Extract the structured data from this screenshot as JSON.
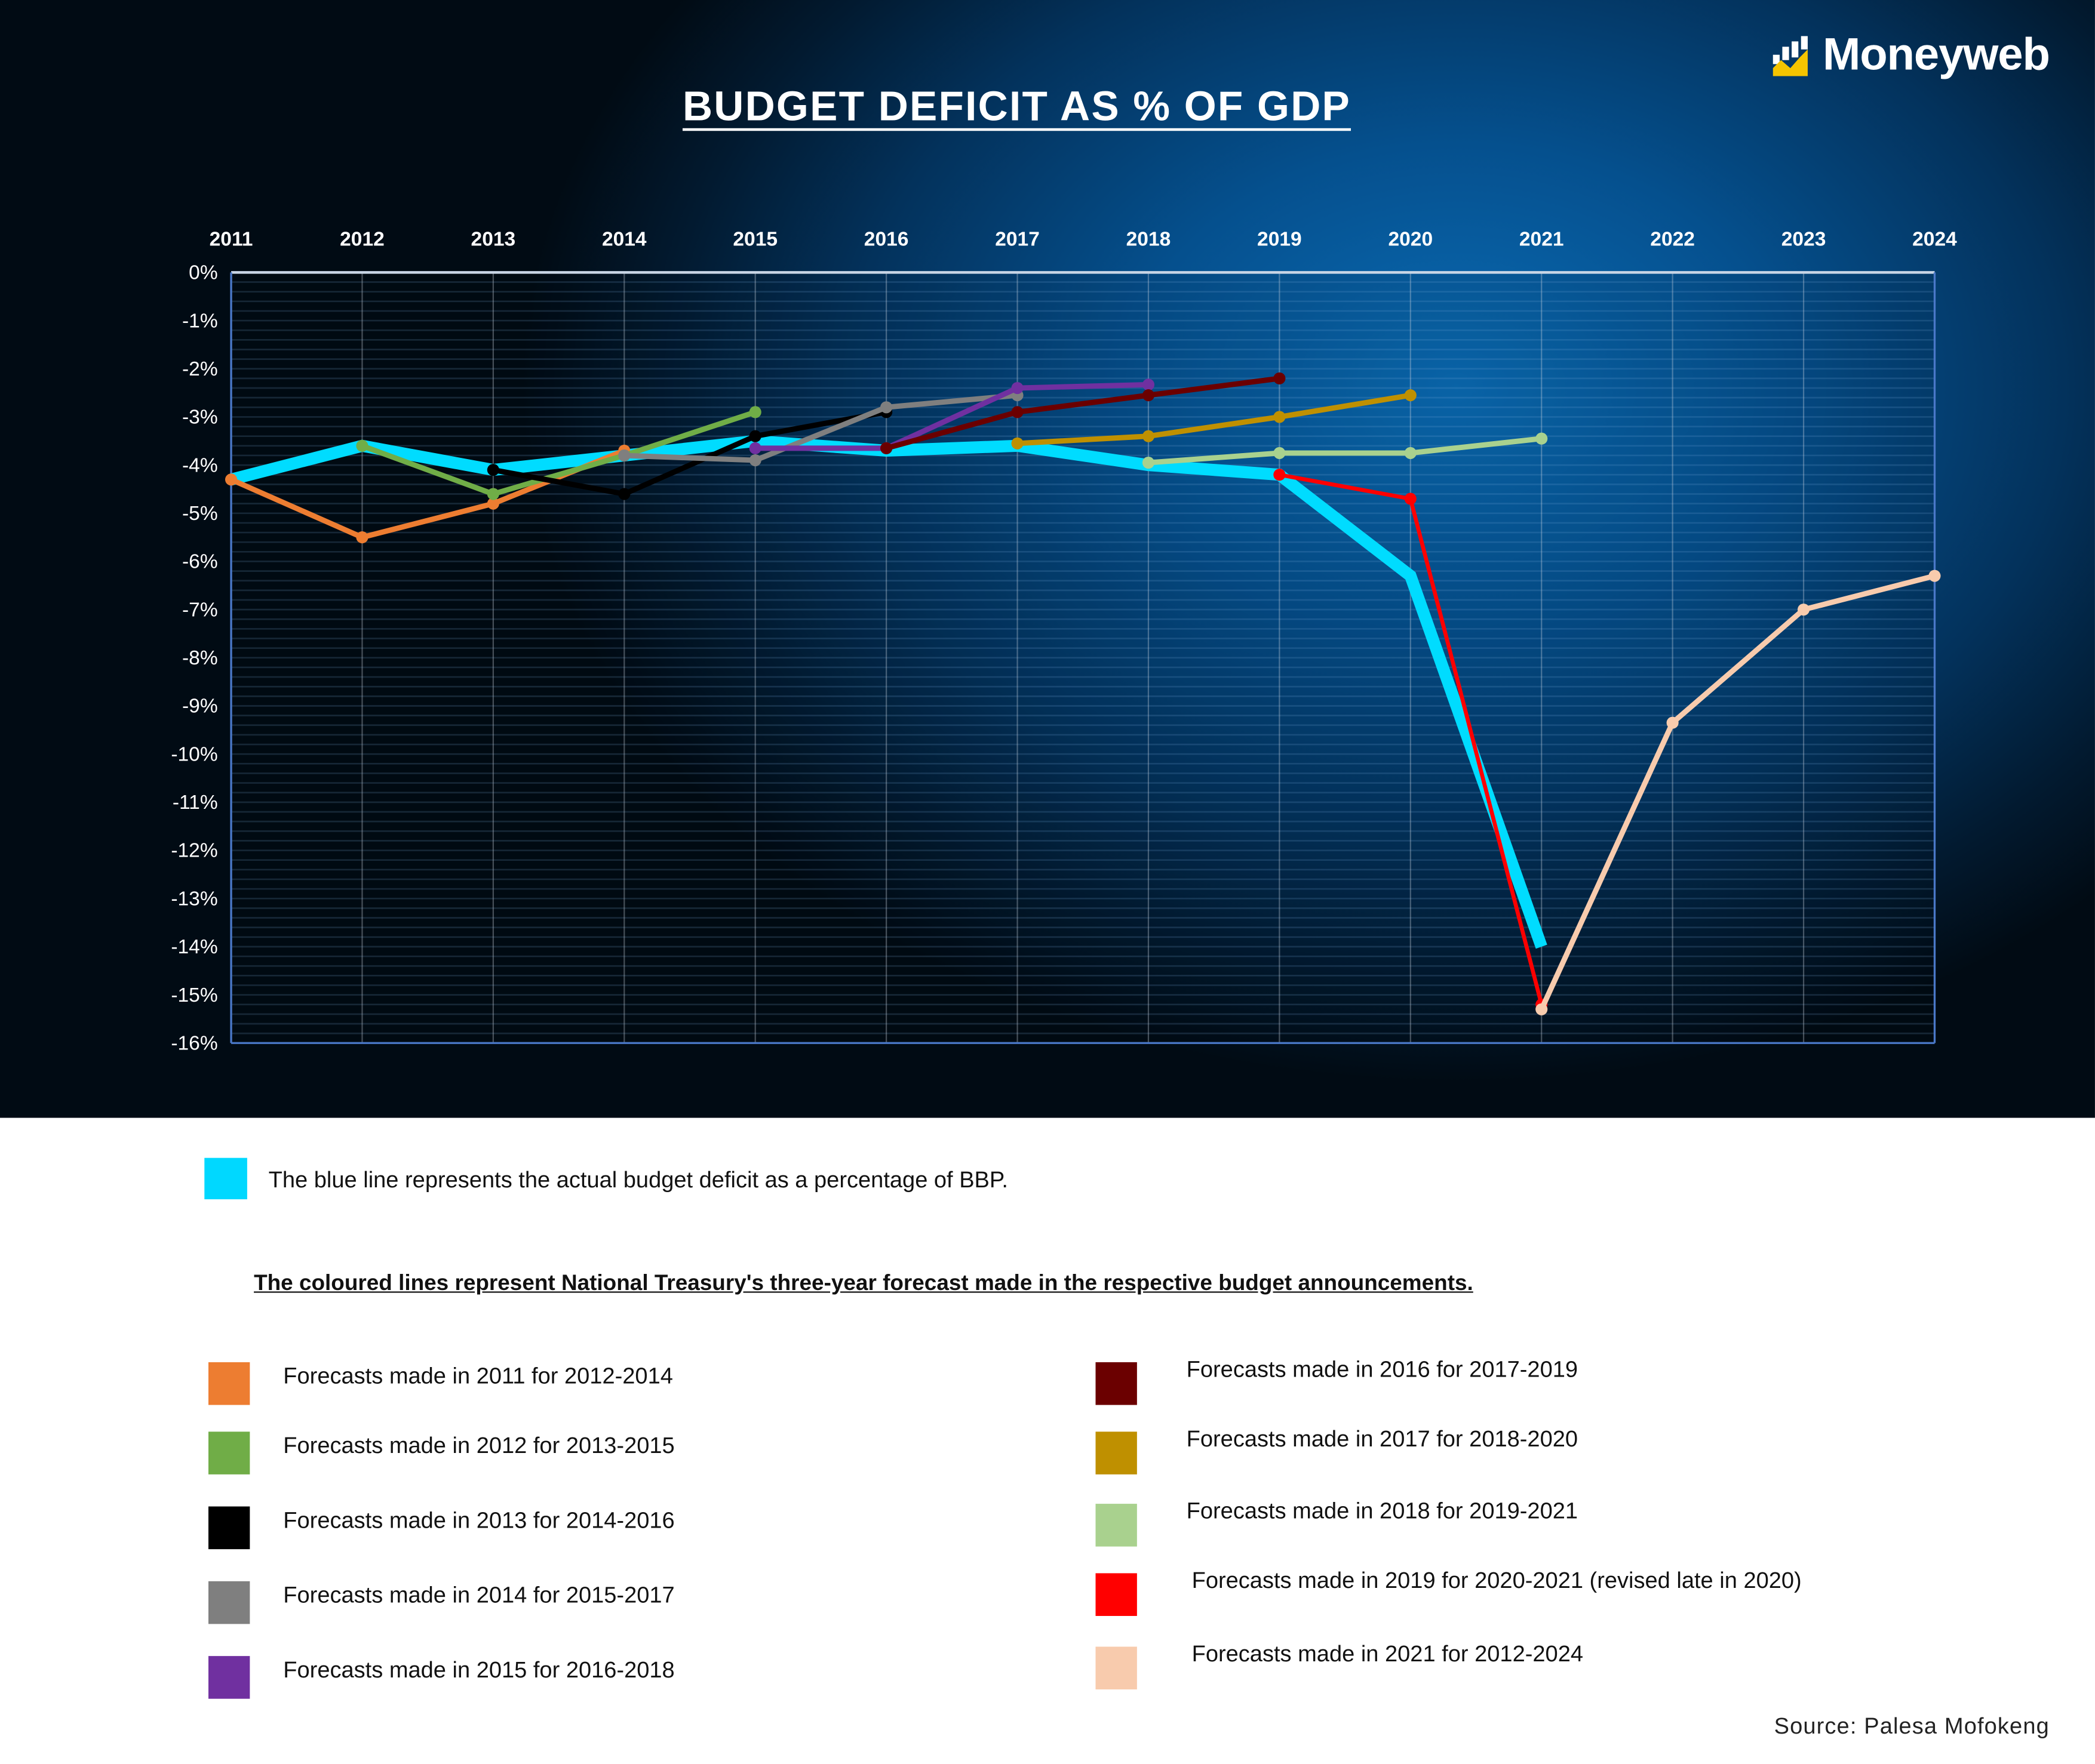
{
  "brand": {
    "name": "Moneyweb",
    "logo_bar_color": "#f5c400"
  },
  "chart_data": {
    "type": "line",
    "title": "BUDGET DEFICIT AS % OF GDP",
    "x": [
      2011,
      2012,
      2013,
      2014,
      2015,
      2016,
      2017,
      2018,
      2019,
      2020,
      2021,
      2022,
      2023,
      2024
    ],
    "x_tick_labels": [
      "2011",
      "2012",
      "2013",
      "2014",
      "2015",
      "2016",
      "2017",
      "2018",
      "2019",
      "2020",
      "2021",
      "2022",
      "2023",
      "2024"
    ],
    "y_tick_labels": [
      "0%",
      "-1%",
      "-2%",
      "-3%",
      "-4%",
      "-5%",
      "-6%",
      "-7%",
      "-8%",
      "-9%",
      "-10%",
      "-11%",
      "-12%",
      "-13%",
      "-14%",
      "-15%",
      "-16%"
    ],
    "ylim": [
      -16,
      0
    ],
    "x_axis_position": "top",
    "grid": true,
    "series": [
      {
        "name": "Actual budget deficit",
        "color": "#00dcff",
        "width": 9,
        "markers": false,
        "x": [
          2011,
          2012,
          2013,
          2014,
          2015,
          2016,
          2017,
          2018,
          2019,
          2020,
          2021
        ],
        "values": [
          -4.3,
          -3.6,
          -4.1,
          -3.8,
          -3.5,
          -3.7,
          -3.6,
          -4.0,
          -4.2,
          -6.3,
          -14.0
        ]
      },
      {
        "name": "Forecasts made in 2011 for 2012-2014",
        "color": "#ed7d31",
        "x": [
          2011,
          2012,
          2013,
          2014
        ],
        "values": [
          -4.3,
          -5.5,
          -4.8,
          -3.7
        ]
      },
      {
        "name": "Forecasts made in 2012 for 2013-2015",
        "color": "#70ad47",
        "x": [
          2012,
          2013,
          2014,
          2015
        ],
        "values": [
          -3.6,
          -4.6,
          -3.8,
          -2.9
        ]
      },
      {
        "name": "Forecasts made in 2013 for 2014-2016",
        "color": "#000000",
        "x": [
          2013,
          2014,
          2015,
          2016
        ],
        "values": [
          -4.1,
          -4.6,
          -3.4,
          -2.9
        ]
      },
      {
        "name": "Forecasts made in 2014 for 2015-2017",
        "color": "#7f7f7f",
        "x": [
          2014,
          2015,
          2016,
          2017
        ],
        "values": [
          -3.8,
          -3.9,
          -2.8,
          -2.55
        ]
      },
      {
        "name": "Forecasts made in 2015 for 2016-2018",
        "color": "#7030a0",
        "x": [
          2015,
          2016,
          2017,
          2018
        ],
        "values": [
          -3.65,
          -3.65,
          -2.4,
          -2.33
        ]
      },
      {
        "name": "Forecasts made in 2016 for 2017-2019",
        "color": "#6b0000",
        "x": [
          2016,
          2017,
          2018,
          2019
        ],
        "values": [
          -3.65,
          -2.9,
          -2.55,
          -2.2
        ]
      },
      {
        "name": "Forecasts made in 2017 for 2018-2020",
        "color": "#bf9000",
        "x": [
          2017,
          2018,
          2019,
          2020
        ],
        "values": [
          -3.55,
          -3.4,
          -3.0,
          -2.55
        ]
      },
      {
        "name": "Forecasts made in 2018 for 2019-2021",
        "color": "#a9d18e",
        "x": [
          2018,
          2019,
          2020,
          2021
        ],
        "values": [
          -3.95,
          -3.75,
          -3.75,
          -3.45
        ]
      },
      {
        "name": "Forecasts made in 2019 for 2020-2021 (revised late in 2020)",
        "color": "#ff0000",
        "x": [
          2019,
          2020,
          2021
        ],
        "values": [
          -4.2,
          -4.7,
          -15.2
        ]
      },
      {
        "name": "Forecasts made in 2021 for 2012-2024",
        "color": "#f8cbad",
        "x": [
          2021,
          2022,
          2023,
          2024
        ],
        "values": [
          -15.3,
          -9.35,
          -7.0,
          -6.3
        ]
      }
    ]
  },
  "legend": {
    "actual_text": "The blue line represents the actual budget deficit as a percentage of BBP.",
    "note": "The coloured lines represent National Treasury's three-year forecast made in the respective budget announcements.",
    "left": [
      {
        "label": "Forecasts made in 2011 for 2012-2014",
        "color": "#ed7d31"
      },
      {
        "label": "Forecasts made in 2012 for 2013-2015",
        "color": "#70ad47"
      },
      {
        "label": "Forecasts made in 2013 for 2014-2016",
        "color": "#000000"
      },
      {
        "label": "Forecasts made in 2014 for 2015-2017",
        "color": "#7f7f7f"
      },
      {
        "label": "Forecasts made in 2015 for 2016-2018",
        "color": "#7030a0"
      }
    ],
    "right": [
      {
        "label": "Forecasts made in 2016 for 2017-2019",
        "color": "#6b0000"
      },
      {
        "label": "Forecasts made in 2017 for 2018-2020",
        "color": "#bf9000"
      },
      {
        "label": "Forecasts made in 2018 for 2019-2021",
        "color": "#a9d18e"
      },
      {
        "label": "Forecasts made in 2019 for 2020-2021 (revised late in 2020)",
        "color": "#ff0000"
      },
      {
        "label": "Forecasts made in 2021 for 2012-2024",
        "color": "#f8cbad"
      }
    ]
  },
  "source": "Source: Palesa Mofokeng"
}
